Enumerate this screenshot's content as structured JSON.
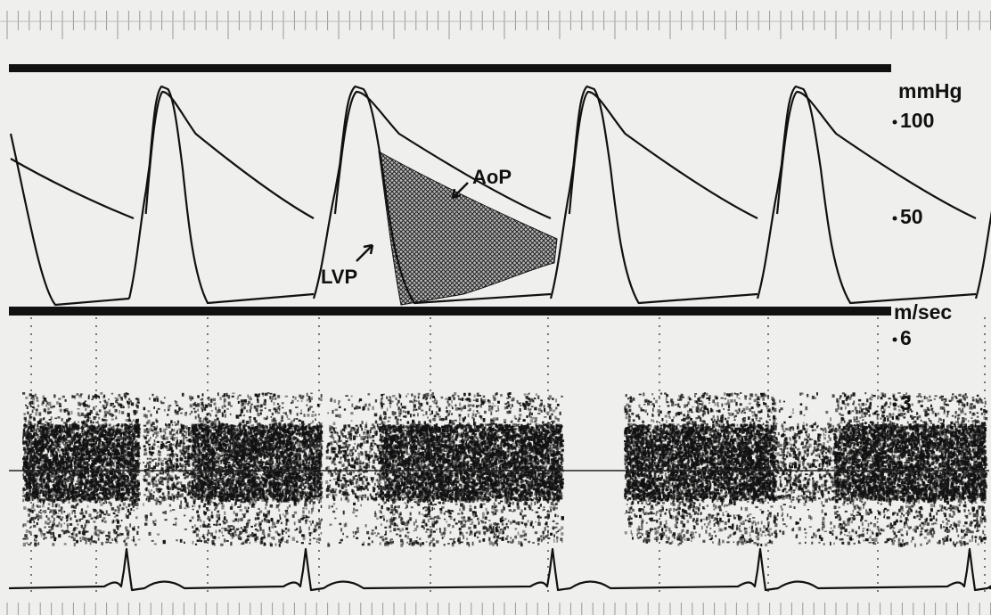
{
  "pressure_scale": {
    "unit": "mmHg",
    "ticks": [
      "100",
      "50"
    ]
  },
  "velocity_scale": {
    "unit": "m/sec",
    "ticks": [
      "6",
      "3"
    ]
  },
  "annotations": {
    "aortic": "AoP",
    "left_ventricular": "LVP"
  }
}
